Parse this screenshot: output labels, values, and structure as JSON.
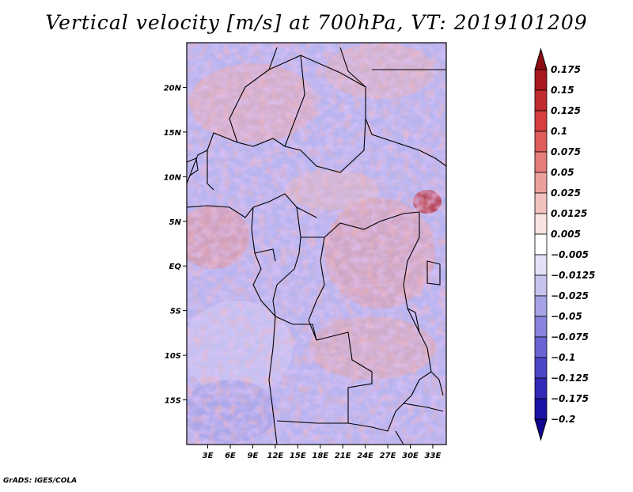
{
  "title": "Vertical velocity [m/s] at 700hPa, VT: 2019101209",
  "credit": "GrADS: IGES/COLA",
  "map": {
    "field": "vertical velocity",
    "units": "m/s",
    "level": "700hPa",
    "valid_time": "2019101209",
    "lon_labels": [
      "3E",
      "6E",
      "9E",
      "12E",
      "15E",
      "18E",
      "21E",
      "24E",
      "27E",
      "30E",
      "33E"
    ],
    "lon_values": [
      3,
      6,
      9,
      12,
      15,
      18,
      21,
      24,
      27,
      30,
      33
    ],
    "lat_labels": [
      "20N",
      "15N",
      "10N",
      "5N",
      "EQ",
      "5S",
      "10S",
      "15S"
    ],
    "lat_values": [
      20,
      15,
      10,
      5,
      0,
      -5,
      -10,
      -15
    ],
    "lon_range": [
      0.2,
      34.8
    ],
    "lat_range": [
      -20,
      25
    ]
  },
  "colorbar": {
    "labels": [
      "0.175",
      "0.15",
      "0.125",
      "0.1",
      "0.075",
      "0.05",
      "0.025",
      "0.0125",
      "0.005",
      "−0.005",
      "−0.0125",
      "−0.025",
      "−0.05",
      "−0.075",
      "−0.1",
      "−0.125",
      "−0.175",
      "−0.2"
    ],
    "colors": [
      "#8c0e14",
      "#a9171e",
      "#c12a2e",
      "#d63e3e",
      "#de5d5b",
      "#e57d7a",
      "#eca09c",
      "#f2c2bf",
      "#f9e3e1",
      "#ffffff",
      "#e4e1f7",
      "#c6c3ef",
      "#a7a3e6",
      "#8883dd",
      "#6a64d3",
      "#4b45c8",
      "#3029b8",
      "#1a12a3",
      "#100890"
    ]
  }
}
